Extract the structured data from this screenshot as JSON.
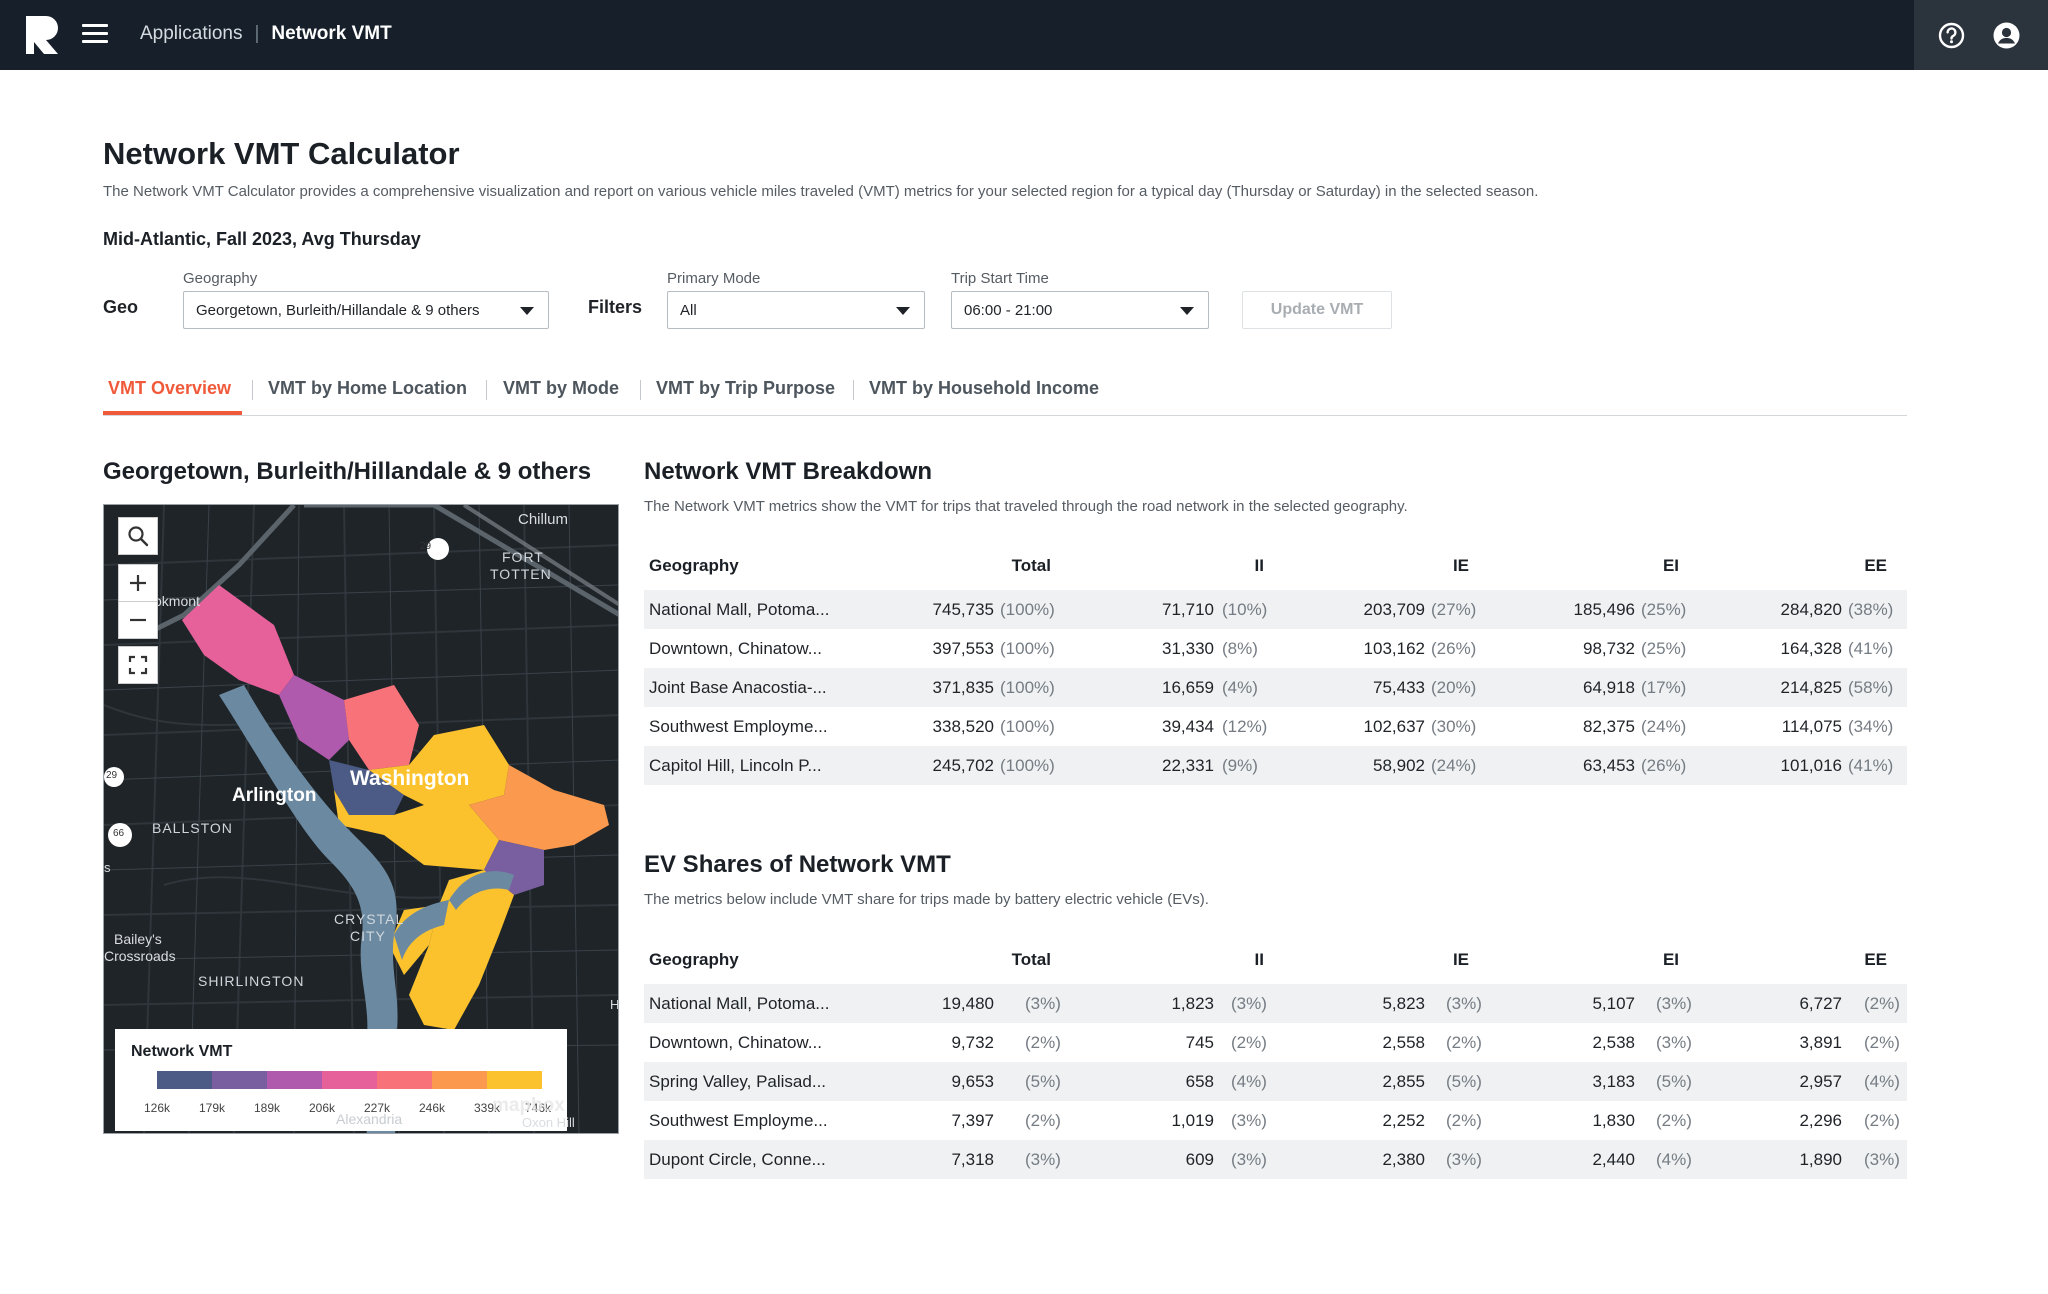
{
  "topbar": {
    "breadcrumb_root": "Applications",
    "breadcrumb_current": "Network VMT"
  },
  "page": {
    "title": "Network VMT Calculator",
    "description": "The Network VMT Calculator provides a comprehensive visualization and report on various vehicle miles traveled (VMT) metrics for your selected region for a typical day (Thursday or Saturday) in the selected season.",
    "context": "Mid-Atlantic, Fall 2023, Avg Thursday"
  },
  "filters": {
    "geo_label": "Geo",
    "geography_label": "Geography",
    "geography_value": "Georgetown, Burleith/Hillandale & 9 others",
    "filters_label": "Filters",
    "primary_mode_label": "Primary Mode",
    "primary_mode_value": "All",
    "trip_start_label": "Trip Start Time",
    "trip_start_value": "06:00 - 21:00",
    "update_button": "Update VMT"
  },
  "tabs": [
    {
      "label": "VMT Overview",
      "active": true
    },
    {
      "label": "VMT by Home Location"
    },
    {
      "label": "VMT by Mode"
    },
    {
      "label": "VMT by Trip Purpose"
    },
    {
      "label": "VMT by Household Income"
    }
  ],
  "map": {
    "title": "Georgetown, Burleith/Hillandale & 9 others",
    "labels": {
      "chillum": "Chillum",
      "fort": "FORT",
      "totten": "TOTTEN",
      "brookmont": "okmont",
      "arlington": "Arlington",
      "washington": "Washington",
      "ballston": "BALLSTON",
      "crystal": "CRYSTAL",
      "city": "CITY",
      "baileys": "Bailey's",
      "crossroads": "Crossroads",
      "shirlington": "SHIRLINGTON",
      "alexandria": "Alexandria",
      "oxon": "Oxon Hill",
      "edge_s": "s",
      "edge_h": "H",
      "shield_29a": "29",
      "shield_29b": "29",
      "shield_66": "66"
    },
    "legend": {
      "title": "Network VMT",
      "colors": [
        "#4b5b85",
        "#7a5fa0",
        "#b05aae",
        "#e6609a",
        "#f8727a",
        "#fb9a4f",
        "#fbc22e"
      ],
      "ticks": [
        "126k",
        "179k",
        "189k",
        "206k",
        "227k",
        "246k",
        "339k",
        "746k"
      ]
    },
    "attribution": "mapbox"
  },
  "breakdown": {
    "title": "Network VMT Breakdown",
    "description": "The Network VMT metrics show the VMT for trips that traveled through the road network in the selected geography.",
    "columns": [
      "Geography",
      "Total",
      "II",
      "IE",
      "EI",
      "EE"
    ],
    "rows": [
      {
        "geo": "National Mall, Potoma...",
        "total": "745,735",
        "total_pct": "(100%)",
        "ii": "71,710",
        "ii_pct": "(10%)",
        "ie": "203,709",
        "ie_pct": "(27%)",
        "ei": "185,496",
        "ei_pct": "(25%)",
        "ee": "284,820",
        "ee_pct": "(38%)"
      },
      {
        "geo": "Downtown, Chinatow...",
        "total": "397,553",
        "total_pct": "(100%)",
        "ii": "31,330",
        "ii_pct": "(8%)",
        "ie": "103,162",
        "ie_pct": "(26%)",
        "ei": "98,732",
        "ei_pct": "(25%)",
        "ee": "164,328",
        "ee_pct": "(41%)"
      },
      {
        "geo": "Joint Base Anacostia-...",
        "total": "371,835",
        "total_pct": "(100%)",
        "ii": "16,659",
        "ii_pct": "(4%)",
        "ie": "75,433",
        "ie_pct": "(20%)",
        "ei": "64,918",
        "ei_pct": "(17%)",
        "ee": "214,825",
        "ee_pct": "(58%)"
      },
      {
        "geo": "Southwest Employme...",
        "total": "338,520",
        "total_pct": "(100%)",
        "ii": "39,434",
        "ii_pct": "(12%)",
        "ie": "102,637",
        "ie_pct": "(30%)",
        "ei": "82,375",
        "ei_pct": "(24%)",
        "ee": "114,075",
        "ee_pct": "(34%)"
      },
      {
        "geo": "Capitol Hill, Lincoln P...",
        "total": "245,702",
        "total_pct": "(100%)",
        "ii": "22,331",
        "ii_pct": "(9%)",
        "ie": "58,902",
        "ie_pct": "(24%)",
        "ei": "63,453",
        "ei_pct": "(26%)",
        "ee": "101,016",
        "ee_pct": "(41%)"
      }
    ]
  },
  "ev": {
    "title": "EV Shares of Network VMT",
    "description": "The metrics below include VMT share for trips made by battery electric vehicle (EVs).",
    "columns": [
      "Geography",
      "Total",
      "II",
      "IE",
      "EI",
      "EE"
    ],
    "rows": [
      {
        "geo": "National Mall, Potoma...",
        "total": "19,480",
        "total_pct": "(3%)",
        "ii": "1,823",
        "ii_pct": "(3%)",
        "ie": "5,823",
        "ie_pct": "(3%)",
        "ei": "5,107",
        "ei_pct": "(3%)",
        "ee": "6,727",
        "ee_pct": "(2%)"
      },
      {
        "geo": "Downtown, Chinatow...",
        "total": "9,732",
        "total_pct": "(2%)",
        "ii": "745",
        "ii_pct": "(2%)",
        "ie": "2,558",
        "ie_pct": "(2%)",
        "ei": "2,538",
        "ei_pct": "(3%)",
        "ee": "3,891",
        "ee_pct": "(2%)"
      },
      {
        "geo": "Spring Valley, Palisad...",
        "total": "9,653",
        "total_pct": "(5%)",
        "ii": "658",
        "ii_pct": "(4%)",
        "ie": "2,855",
        "ie_pct": "(5%)",
        "ei": "3,183",
        "ei_pct": "(5%)",
        "ee": "2,957",
        "ee_pct": "(4%)"
      },
      {
        "geo": "Southwest Employme...",
        "total": "7,397",
        "total_pct": "(2%)",
        "ii": "1,019",
        "ii_pct": "(3%)",
        "ie": "2,252",
        "ie_pct": "(2%)",
        "ei": "1,830",
        "ei_pct": "(2%)",
        "ee": "2,296",
        "ee_pct": "(2%)"
      },
      {
        "geo": "Dupont Circle, Conne...",
        "total": "7,318",
        "total_pct": "(3%)",
        "ii": "609",
        "ii_pct": "(3%)",
        "ie": "2,380",
        "ie_pct": "(3%)",
        "ei": "2,440",
        "ei_pct": "(4%)",
        "ee": "1,890",
        "ee_pct": "(3%)"
      }
    ]
  }
}
